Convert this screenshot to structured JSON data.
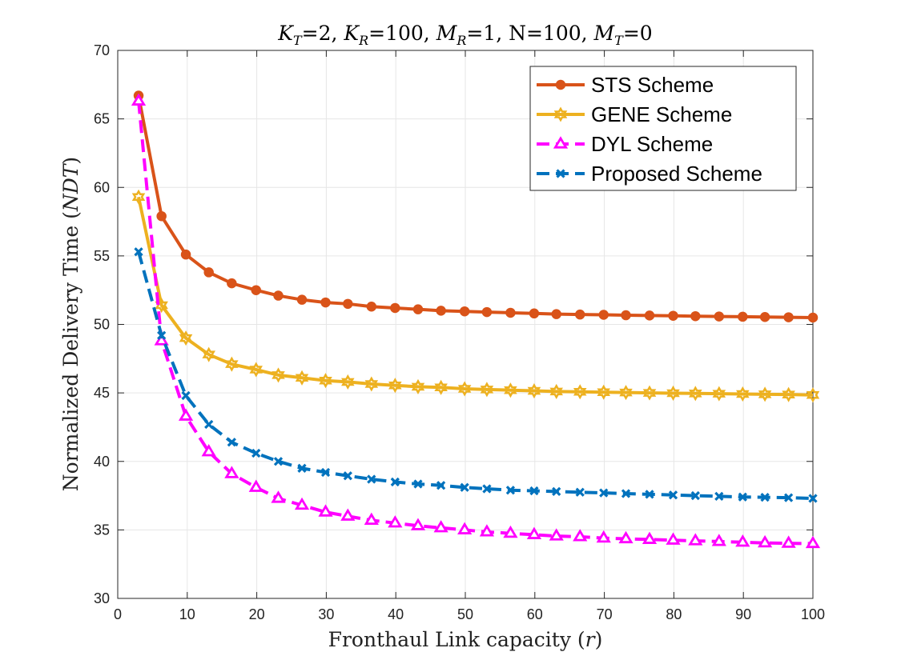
{
  "chart_data": {
    "type": "line",
    "title": "K_T=2, K_R=100, M_R=1, N=100, M_T=0",
    "title_parts": {
      "kt_label": "K",
      "kt_sub": "T",
      "kt_val": "=2, ",
      "kr_label": "K",
      "kr_sub": "R",
      "kr_val": "=100, ",
      "mr_label": "M",
      "mr_sub": "R",
      "mr_val": "=1, N=100, ",
      "mt_label": "M",
      "mt_sub": "T",
      "mt_val": "=0"
    },
    "xlabel": "Fronthaul Link capacity (r)",
    "xlabel_parts": {
      "text": "Fronthaul Link capacity (",
      "var": "r",
      "close": ")"
    },
    "ylabel": "Normalized Delivery Time (NDT)",
    "ylabel_parts": {
      "text": "Normalized Delivery Time (",
      "var": "NDT",
      "close": ")"
    },
    "xlim": [
      0,
      100
    ],
    "ylim": [
      30,
      70
    ],
    "xticks": [
      0,
      10,
      20,
      30,
      40,
      50,
      60,
      70,
      80,
      90,
      100
    ],
    "yticks": [
      30,
      35,
      40,
      45,
      50,
      55,
      60,
      65,
      70
    ],
    "grid": true,
    "legend_position": "top-right",
    "x": [
      3.0,
      6.3,
      9.8,
      13.1,
      16.4,
      19.9,
      23.1,
      26.5,
      29.9,
      33.1,
      36.5,
      39.9,
      43.2,
      46.5,
      49.9,
      53.1,
      56.5,
      59.9,
      63.1,
      66.5,
      69.9,
      73.1,
      76.5,
      79.9,
      83.1,
      86.5,
      89.9,
      93.1,
      96.5,
      100.0
    ],
    "series": [
      {
        "name": "STS Scheme",
        "color": "#D95319",
        "marker": "circle",
        "dash": "solid",
        "values": [
          66.7,
          57.9,
          55.1,
          53.8,
          53.0,
          52.5,
          52.1,
          51.8,
          51.6,
          51.5,
          51.3,
          51.2,
          51.1,
          51.0,
          50.95,
          50.9,
          50.85,
          50.8,
          50.75,
          50.72,
          50.7,
          50.67,
          50.65,
          50.63,
          50.6,
          50.58,
          50.56,
          50.54,
          50.52,
          50.5
        ]
      },
      {
        "name": "GENE Scheme",
        "color": "#EDB120",
        "marker": "hexagram",
        "dash": "solid",
        "values": [
          59.3,
          51.4,
          49.0,
          47.8,
          47.1,
          46.7,
          46.3,
          46.1,
          45.9,
          45.8,
          45.65,
          45.55,
          45.45,
          45.4,
          45.3,
          45.25,
          45.2,
          45.15,
          45.1,
          45.08,
          45.05,
          45.03,
          45.0,
          44.98,
          44.96,
          44.94,
          44.92,
          44.9,
          44.88,
          44.85
        ]
      },
      {
        "name": "DYL Scheme",
        "color": "#FF00FF",
        "marker": "triangle",
        "dash": "dashed",
        "values": [
          66.3,
          48.8,
          43.3,
          40.7,
          39.1,
          38.1,
          37.3,
          36.8,
          36.3,
          36.0,
          35.7,
          35.5,
          35.3,
          35.15,
          35.0,
          34.85,
          34.75,
          34.65,
          34.55,
          34.5,
          34.4,
          34.35,
          34.3,
          34.25,
          34.2,
          34.15,
          34.1,
          34.05,
          34.02,
          34.0
        ]
      },
      {
        "name": "Proposed Scheme",
        "color": "#0072BD",
        "marker": "x",
        "dash": "dashed",
        "values": [
          55.3,
          49.2,
          44.8,
          42.7,
          41.4,
          40.6,
          40.0,
          39.5,
          39.2,
          38.95,
          38.7,
          38.5,
          38.35,
          38.25,
          38.1,
          38.0,
          37.9,
          37.85,
          37.8,
          37.75,
          37.7,
          37.65,
          37.6,
          37.55,
          37.5,
          37.45,
          37.4,
          37.38,
          37.35,
          37.3
        ]
      }
    ]
  }
}
